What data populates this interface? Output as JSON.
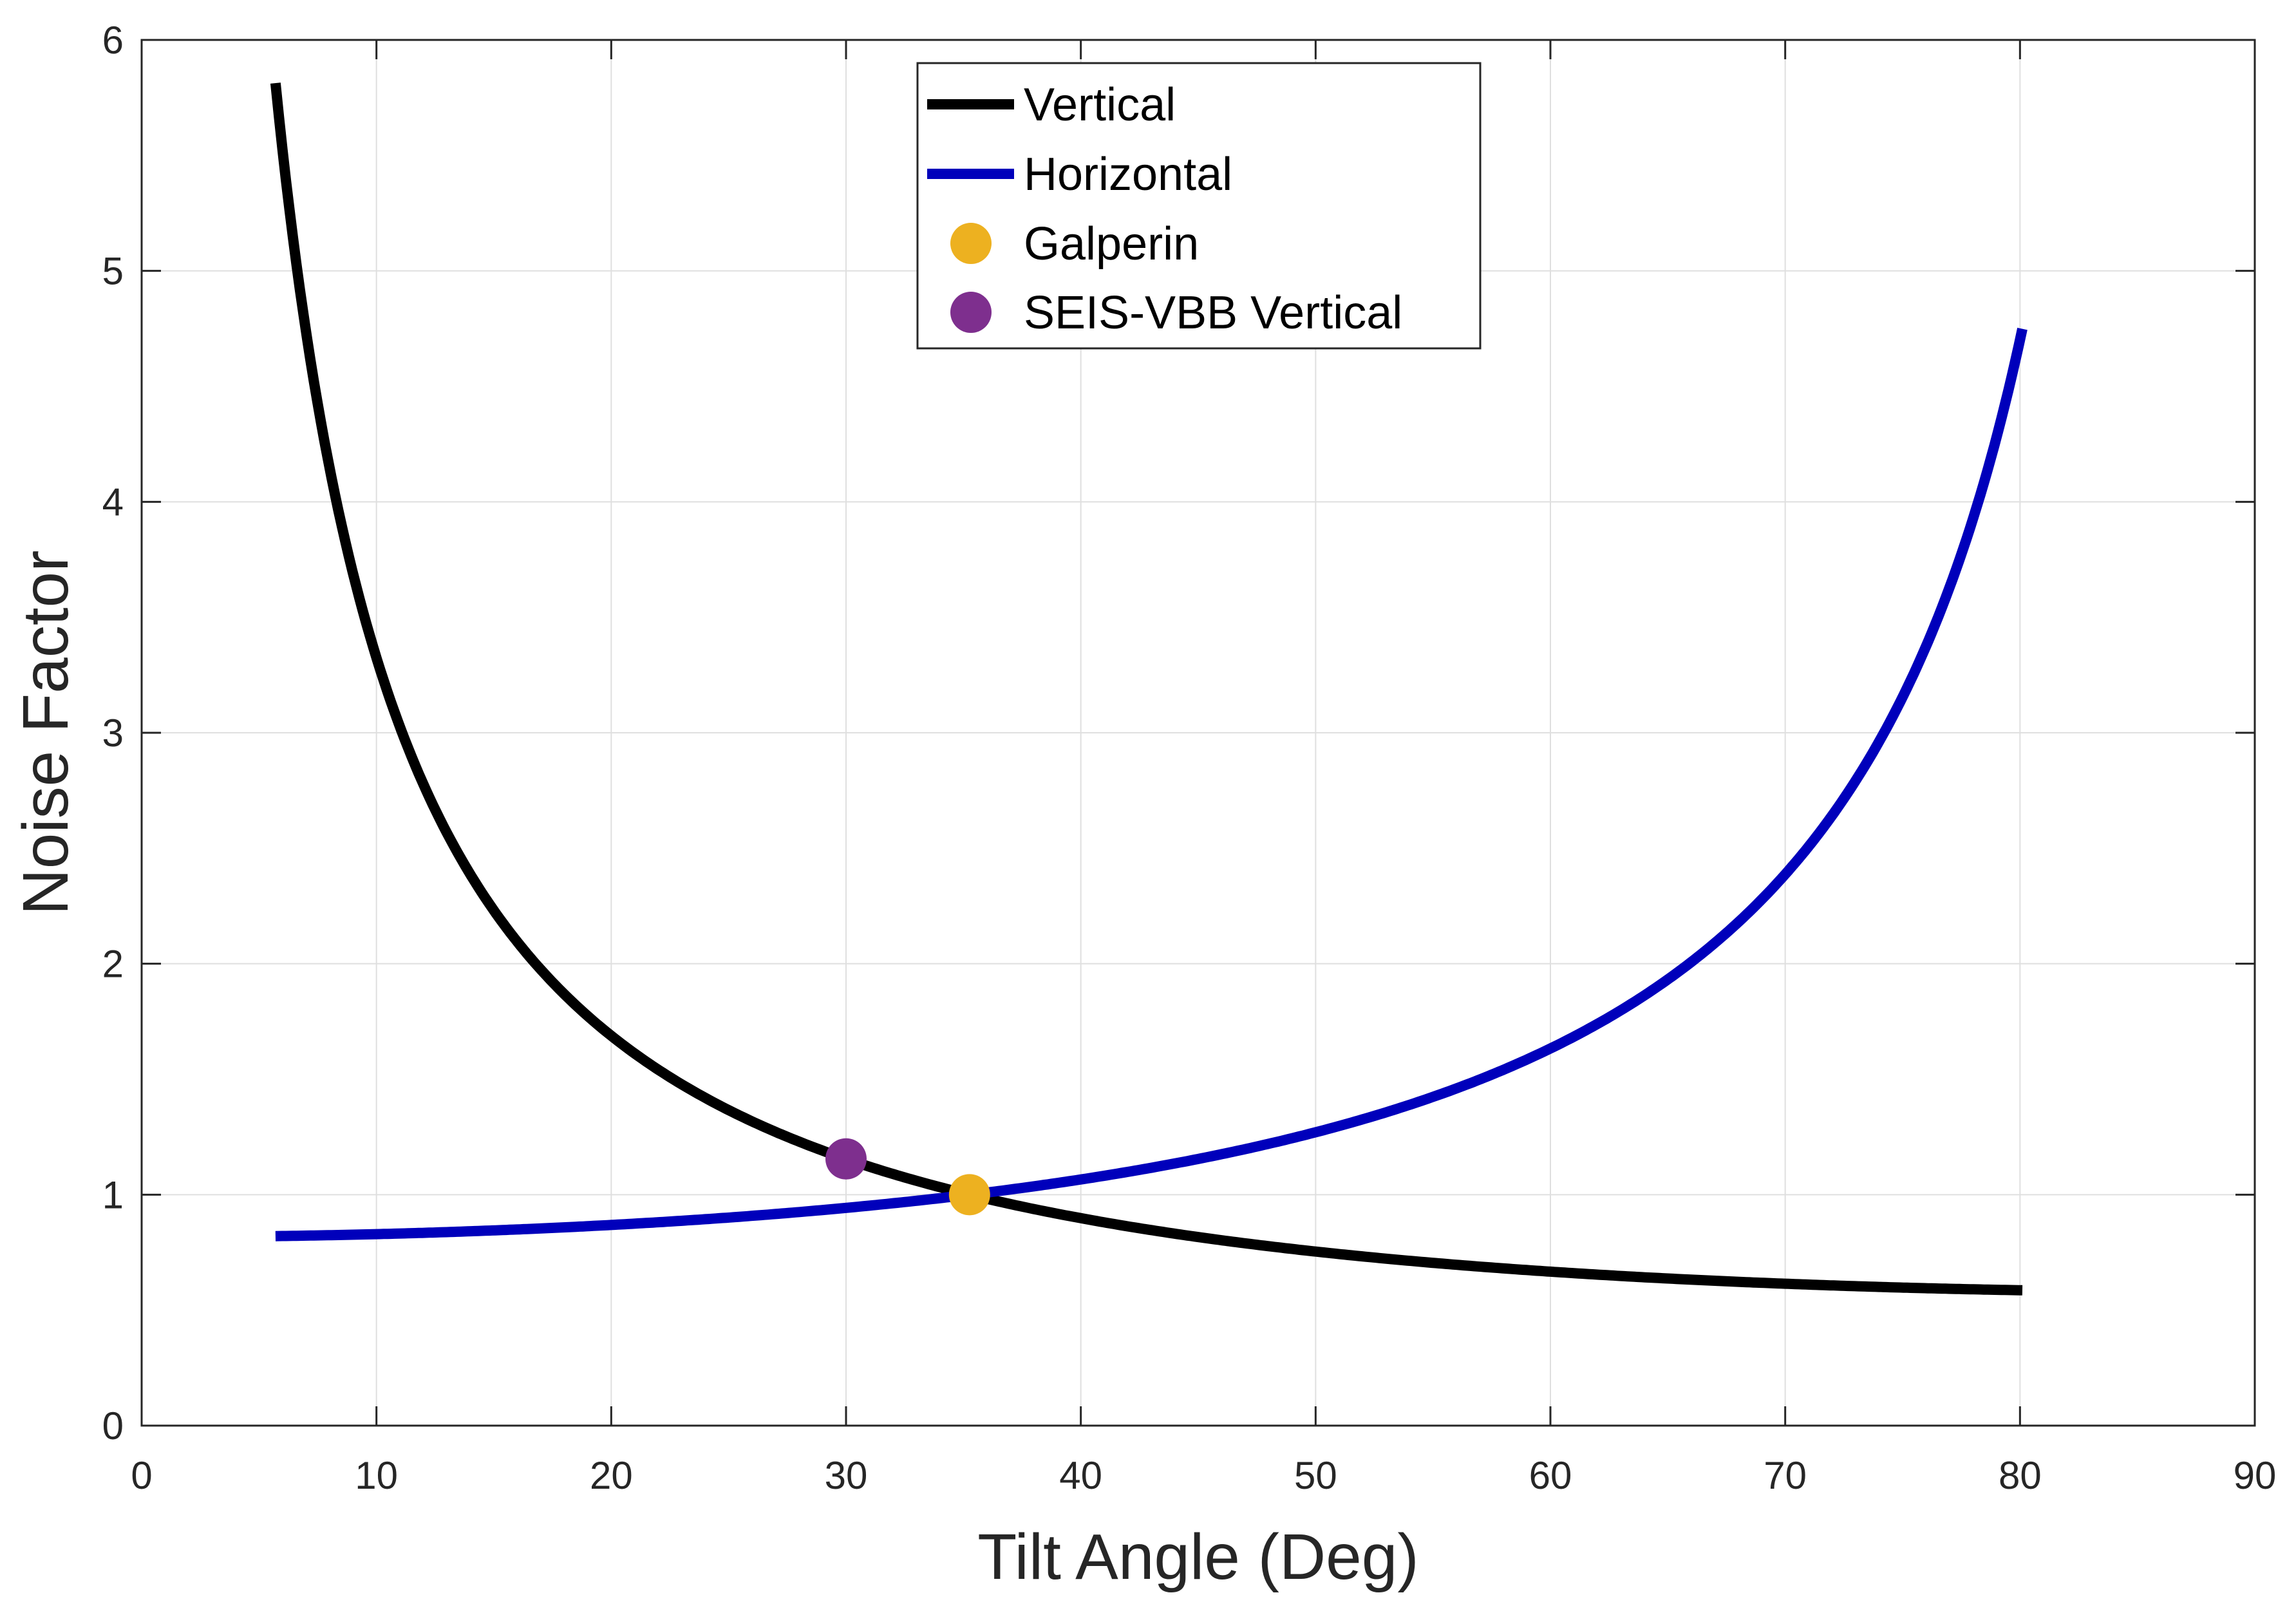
{
  "chart_data": {
    "type": "line",
    "title": "",
    "xlabel": "Tilt Angle (Deg)",
    "ylabel": "Noise Factor",
    "xlim": [
      0,
      90
    ],
    "ylim": [
      0,
      6
    ],
    "xticks": [
      0,
      10,
      20,
      30,
      40,
      50,
      60,
      70,
      80,
      90
    ],
    "yticks": [
      0,
      1,
      2,
      3,
      4,
      5,
      6
    ],
    "xtick_labels": [
      "0",
      "10",
      "20",
      "30",
      "40",
      "50",
      "60",
      "70",
      "80",
      "90"
    ],
    "ytick_labels": [
      "0",
      "1",
      "2",
      "3",
      "4",
      "5",
      "6"
    ],
    "grid": true,
    "legend_position": "top-center",
    "series": [
      {
        "name": "Vertical",
        "kind": "line",
        "color": "#000000",
        "formula": "1/(sqrt(3)*sin(theta))",
        "x_range": [
          5.7,
          80.1
        ],
        "x": [
          5.7,
          7,
          8,
          10,
          12,
          15,
          20,
          25,
          30,
          35.26,
          40,
          45,
          50,
          55,
          60,
          65,
          70,
          75,
          80.1
        ],
        "values": [
          5.81,
          4.74,
          4.15,
          3.33,
          2.78,
          2.23,
          1.69,
          1.37,
          1.15,
          1.0,
          0.9,
          0.82,
          0.75,
          0.7,
          0.67,
          0.64,
          0.61,
          0.6,
          0.59
        ]
      },
      {
        "name": "Horizontal",
        "kind": "line",
        "color": "#0000bb",
        "formula": "sqrt(2/3)/cos(theta)",
        "x_range": [
          5.7,
          80.1
        ],
        "x": [
          5.7,
          10,
          15,
          20,
          25,
          30,
          35.26,
          40,
          45,
          50,
          55,
          60,
          65,
          70,
          75,
          80.1
        ],
        "values": [
          0.82,
          0.83,
          0.85,
          0.87,
          0.9,
          0.94,
          1.0,
          1.07,
          1.15,
          1.27,
          1.42,
          1.63,
          1.93,
          2.39,
          3.15,
          4.74
        ]
      },
      {
        "name": "Galperin",
        "kind": "point",
        "color": "#edb120",
        "x": [
          35.26
        ],
        "values": [
          1.0
        ]
      },
      {
        "name": "SEIS-VBB Vertical",
        "kind": "point",
        "color": "#7e2f8e",
        "x": [
          30
        ],
        "values": [
          1.155
        ]
      }
    ]
  }
}
